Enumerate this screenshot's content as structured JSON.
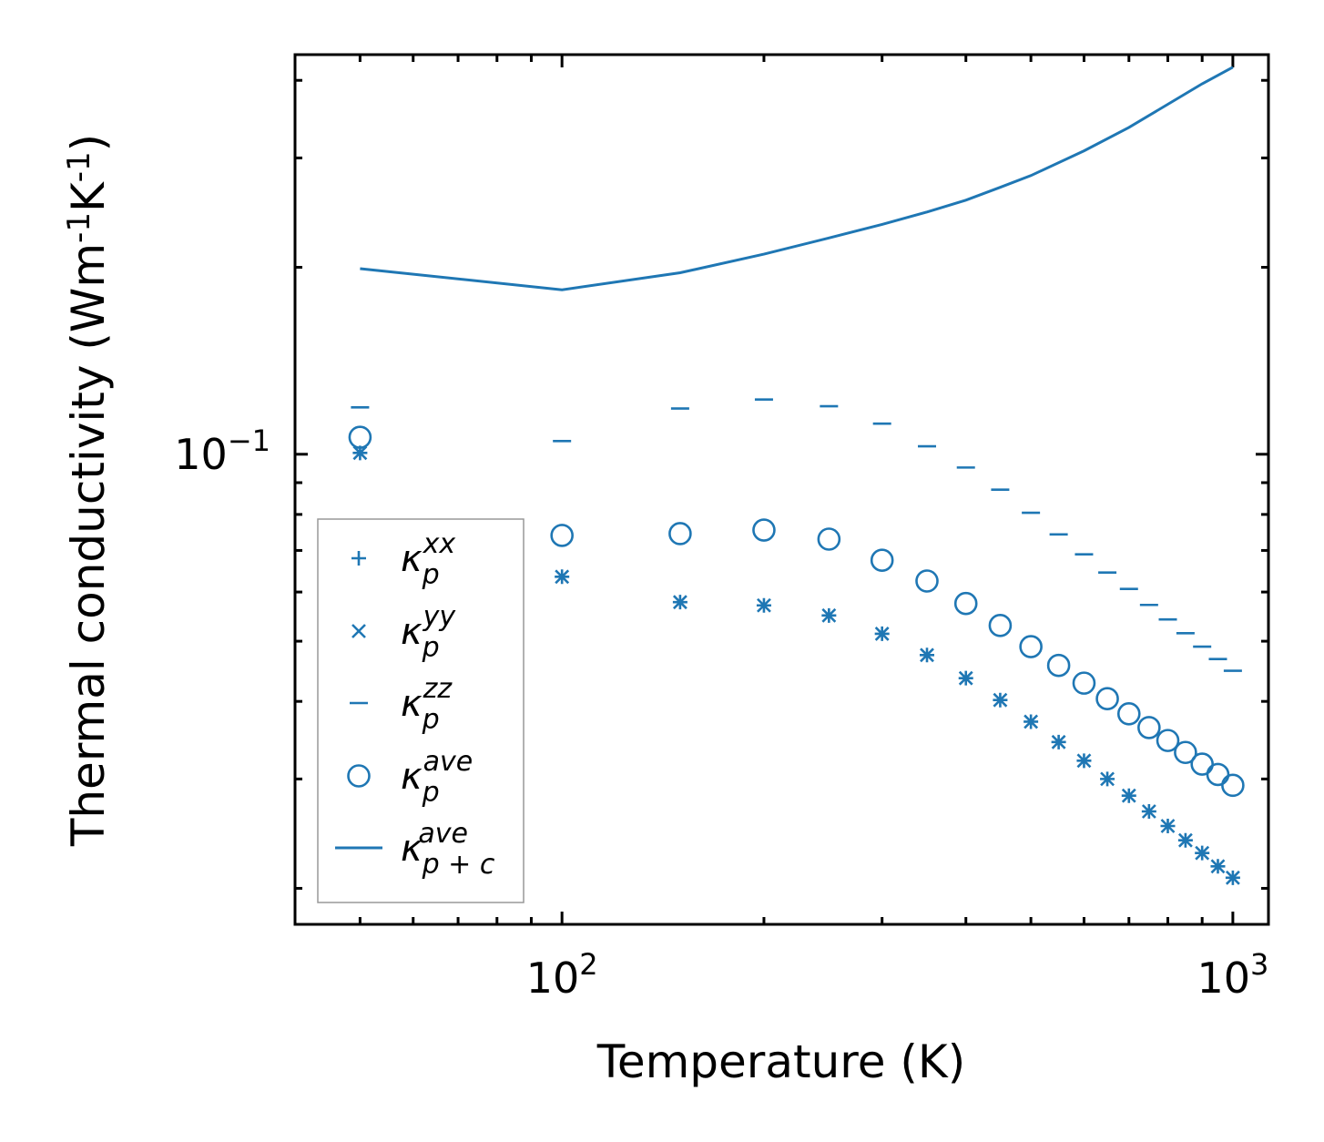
{
  "chart_data": {
    "type": "scatter",
    "xscale": "log",
    "yscale": "log",
    "xlabel": "Temperature (K)",
    "ylabel": "Thermal conductivity (Wm$^{-1}$K$^{-1}$)",
    "xlim": [
      40,
      1130
    ],
    "ylim": [
      0.0175,
      0.44
    ],
    "x_ticks": [
      {
        "value": 100,
        "base": "10",
        "exp": "2"
      },
      {
        "value": 1000,
        "base": "10",
        "exp": "3"
      }
    ],
    "y_ticks": [
      {
        "value": 0.1,
        "base": "10",
        "exp": "−1"
      }
    ],
    "color": "#1f77b4",
    "series": [
      {
        "name": "kappa_p^xx",
        "marker": "plus",
        "legend": {
          "base": "κ",
          "sub": "p",
          "sup": "xx"
        },
        "x": [
          50,
          100,
          150,
          200,
          250,
          300,
          350,
          400,
          450,
          500,
          550,
          600,
          650,
          700,
          750,
          800,
          850,
          900,
          950,
          1000
        ],
        "y": [
          0.1005,
          0.0635,
          0.0578,
          0.0571,
          0.055,
          0.0514,
          0.0475,
          0.0436,
          0.0402,
          0.0371,
          0.0344,
          0.0321,
          0.03,
          0.0282,
          0.0266,
          0.0252,
          0.0239,
          0.0228,
          0.0217,
          0.0208
        ]
      },
      {
        "name": "kappa_p^yy",
        "marker": "x",
        "legend": {
          "base": "κ",
          "sub": "p",
          "sup": "yy"
        },
        "x": [
          50,
          100,
          150,
          200,
          250,
          300,
          350,
          400,
          450,
          500,
          550,
          600,
          650,
          700,
          750,
          800,
          850,
          900,
          950,
          1000
        ],
        "y": [
          0.1005,
          0.0635,
          0.0578,
          0.0571,
          0.055,
          0.0514,
          0.0475,
          0.0436,
          0.0402,
          0.0371,
          0.0344,
          0.0321,
          0.03,
          0.0282,
          0.0266,
          0.0252,
          0.0239,
          0.0228,
          0.0217,
          0.0208
        ]
      },
      {
        "name": "kappa_p^zz",
        "marker": "hline",
        "legend": {
          "base": "κ",
          "sub": "p",
          "sup": "zz"
        },
        "x": [
          50,
          100,
          150,
          200,
          250,
          300,
          350,
          400,
          450,
          500,
          550,
          600,
          650,
          700,
          750,
          800,
          850,
          900,
          950,
          1000
        ],
        "y": [
          0.119,
          0.105,
          0.1185,
          0.1225,
          0.1195,
          0.112,
          0.103,
          0.0952,
          0.0877,
          0.0805,
          0.0743,
          0.069,
          0.0645,
          0.0607,
          0.0572,
          0.0542,
          0.0515,
          0.049,
          0.0468,
          0.0448
        ]
      },
      {
        "name": "kappa_p^ave",
        "marker": "circle",
        "legend": {
          "base": "κ",
          "sub": "p",
          "sup": "ave"
        },
        "x": [
          50,
          100,
          150,
          200,
          250,
          300,
          350,
          400,
          450,
          500,
          550,
          600,
          650,
          700,
          750,
          800,
          850,
          900,
          950,
          1000
        ],
        "y": [
          0.1065,
          0.074,
          0.0745,
          0.0755,
          0.073,
          0.0675,
          0.0625,
          0.0575,
          0.053,
          0.049,
          0.0457,
          0.0428,
          0.0404,
          0.0382,
          0.0363,
          0.0346,
          0.0331,
          0.0317,
          0.0305,
          0.0293
        ]
      },
      {
        "name": "kappa_p+c^ave",
        "marker": "line",
        "legend": {
          "base": "κ",
          "sub": "p + c",
          "sup": "ave"
        },
        "x": [
          50,
          100,
          150,
          200,
          250,
          300,
          350,
          400,
          450,
          500,
          600,
          700,
          800,
          900,
          1000
        ],
        "y": [
          0.199,
          0.184,
          0.196,
          0.21,
          0.223,
          0.2345,
          0.2455,
          0.2565,
          0.269,
          0.281,
          0.308,
          0.336,
          0.366,
          0.395,
          0.42
        ]
      }
    ],
    "legend_position": "lower-left"
  }
}
